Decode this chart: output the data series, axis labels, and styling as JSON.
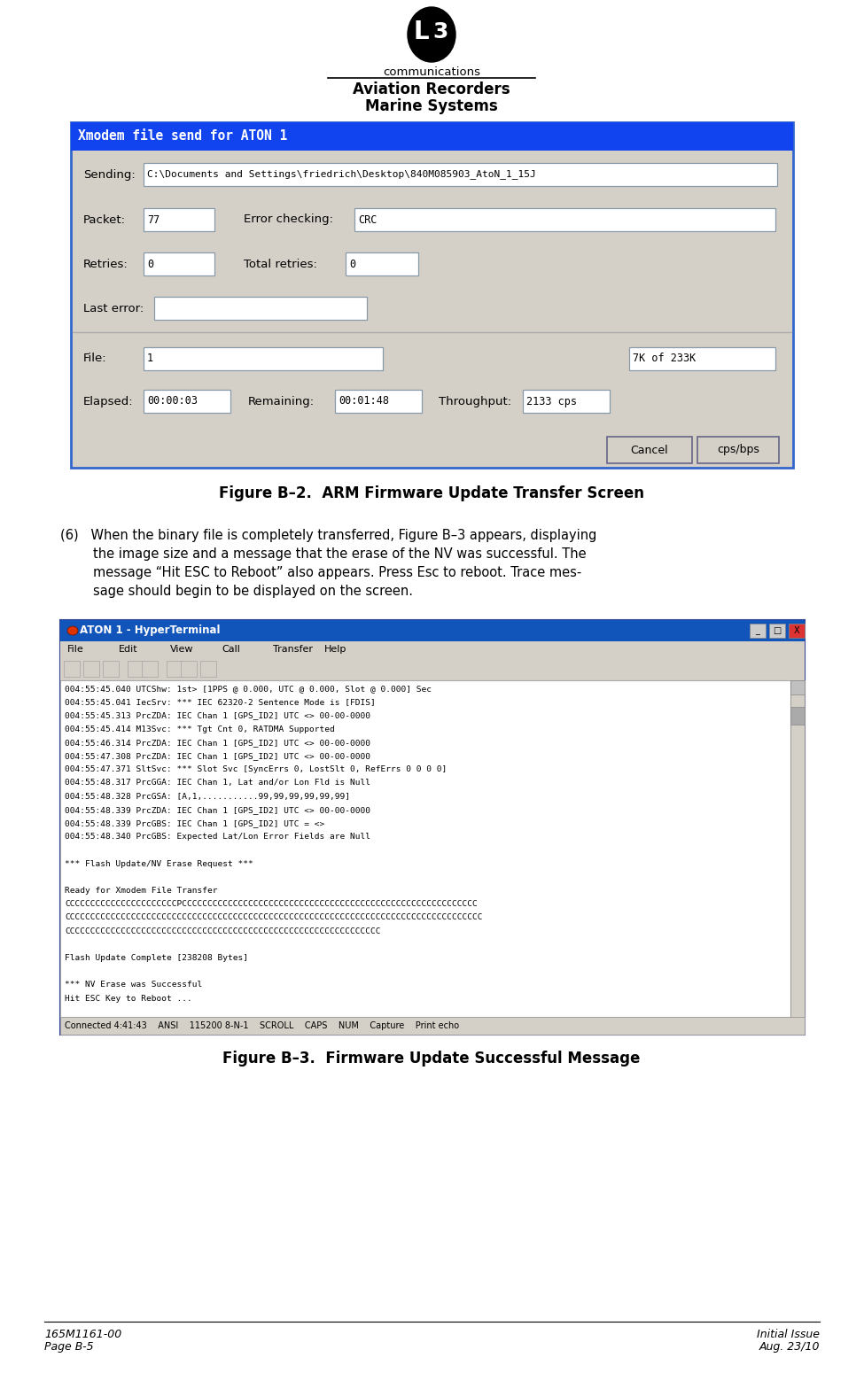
{
  "bg_color": "#ffffff",
  "logo_text": "communications",
  "header_line1": "Aviation Recorders",
  "header_line2": "Marine Systems",
  "footer_left_line1": "165M1161-00",
  "footer_left_line2": "Page B-5",
  "footer_right_line1": "Initial Issue",
  "footer_right_line2": "Aug. 23/10",
  "figure1_title": "Figure B–2.  ARM Firmware Update Transfer Screen",
  "figure2_title": "Figure B–3.  Firmware Update Successful Message",
  "xmodem_title": "Xmodem file send for ATON 1",
  "xmodem_bg": "#d4d0c8",
  "xmodem_sending": "C:\\Documents and Settings\\friedrich\\Desktop\\840M085903_AtoN_1_15J",
  "xmodem_packet": "77",
  "xmodem_error_checking": "CRC",
  "xmodem_retries": "0",
  "xmodem_total_retries": "0",
  "xmodem_file": "1",
  "xmodem_file_right": "7K of 233K",
  "xmodem_elapsed": "00:00:03",
  "xmodem_remaining": "00:01:48",
  "xmodem_throughput": "2133 cps",
  "body_lines": [
    "(6)   When the binary file is completely transferred, Figure B–3 appears, displaying",
    "        the image size and a message that the erase of the NV was successful. The",
    "        message “Hit ESC to Reboot” also appears. Press Esc to reboot. Trace mes-",
    "        sage should begin to be displayed on the screen."
  ],
  "terminal_title": "ATON 1 - HyperTerminal",
  "terminal_lines": [
    "004:55:45.040 UTCShw: 1st> [1PPS @ 0.000, UTC @ 0.000, Slot @ 0.000] Sec",
    "004:55:45.041 IecSrv: *** IEC 62320-2 Sentence Mode is [FDIS]",
    "004:55:45.313 PrcZDA: IEC Chan 1 [GPS_ID2] UTC <> 00-00-0000",
    "004:55:45.414 M13Svc: *** Tgt Cnt 0, RATDMA Supported",
    "004:55:46.314 PrcZDA: IEC Chan 1 [GPS_ID2] UTC <> 00-00-0000",
    "004:55:47.308 PrcZDA: IEC Chan 1 [GPS_ID2] UTC <> 00-00-0000",
    "004:55:47.371 SltSvc: *** Slot Svc [SyncErrs 0, LostSlt 0, RefErrs 0 0 0 0]",
    "004:55:48.317 PrcGGA: IEC Chan 1, Lat and/or Lon Fld is Null",
    "004:55:48.328 PrcGSA: [A,1,...........99,99,99,99,99,99]",
    "004:55:48.339 PrcZDA: IEC Chan 1 [GPS_ID2] UTC <> 00-00-0000",
    "004:55:48.339 PrcGBS: IEC Chan 1 [GPS_ID2] UTC = <>",
    "004:55:48.340 PrcGBS: Expected Lat/Lon Error Fields are Null",
    "",
    "*** Flash Update/NV Erase Request ***",
    "",
    "Ready for Xmodem File Transfer",
    "CCCCCCCCCCCCCCCCCCCCCCPCCCCCCCCCCCCCCCCCCCCCCCCCCCCCCCCCCCCCCCCCCCCCCCCCCCCCCCCCC",
    "CCCCCCCCCCCCCCCCCCCCCCCCCCCCCCCCCCCCCCCCCCCCCCCCCCCCCCCCCCCCCCCCCCCCCCCCCCCCCCCCCC",
    "CCCCCCCCCCCCCCCCCCCCCCCCCCCCCCCCCCCCCCCCCCCCCCCCCCCCCCCCCCCCCC",
    "",
    "Flash Update Complete [238208 Bytes]",
    "",
    "*** NV Erase was Successful",
    "Hit ESC Key to Reboot ..."
  ],
  "terminal_statusbar": "Connected 4:41:43    ANSI    115200 8-N-1    SCROLL    CAPS    NUM    Capture    Print echo"
}
